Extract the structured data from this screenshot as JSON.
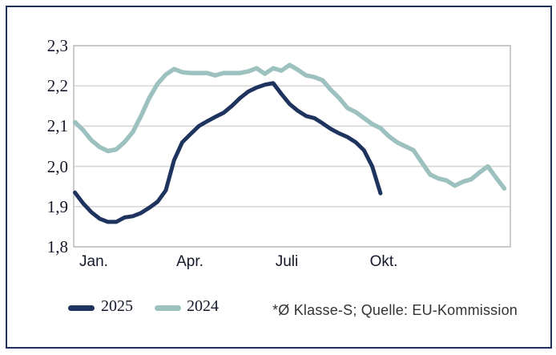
{
  "chart_data": {
    "type": "line",
    "title": "",
    "ylabel": "",
    "xlabel": "",
    "ylim": [
      1.8,
      2.3
    ],
    "grid": "horizontal",
    "legend_position": "bottom-left",
    "y_ticks": [
      "2,3",
      "2,2",
      "2,1",
      "2,0",
      "1,9",
      "1,8"
    ],
    "y_tick_values": [
      2.3,
      2.2,
      2.1,
      2.0,
      1.9,
      1.8
    ],
    "x_tick_labels": [
      "Jan.",
      "Apr.",
      "Juli",
      "Okt."
    ],
    "x_point_count": 53,
    "x_resolution": "weekly",
    "series": [
      {
        "name": "2025",
        "color": "#1e335d",
        "width": 5.0,
        "values": [
          1.935,
          1.908,
          1.886,
          1.87,
          1.862,
          1.862,
          1.873,
          1.876,
          1.884,
          1.897,
          1.912,
          1.94,
          2.015,
          2.06,
          2.08,
          2.1,
          2.112,
          2.123,
          2.133,
          2.15,
          2.17,
          2.186,
          2.196,
          2.203,
          2.207,
          2.18,
          2.155,
          2.138,
          2.125,
          2.12,
          2.107,
          2.093,
          2.082,
          2.073,
          2.06,
          2.04,
          2.0,
          1.933
        ]
      },
      {
        "name": "2024",
        "color": "#9dc1bf",
        "width": 5.5,
        "values": [
          2.11,
          2.09,
          2.065,
          2.048,
          2.038,
          2.042,
          2.06,
          2.085,
          2.125,
          2.17,
          2.205,
          2.228,
          2.242,
          2.234,
          2.232,
          2.232,
          2.232,
          2.226,
          2.232,
          2.232,
          2.232,
          2.236,
          2.244,
          2.23,
          2.244,
          2.238,
          2.252,
          2.24,
          2.226,
          2.222,
          2.214,
          2.19,
          2.17,
          2.145,
          2.135,
          2.12,
          2.105,
          2.095,
          2.075,
          2.06,
          2.05,
          2.04,
          2.01,
          1.98,
          1.97,
          1.965,
          1.952,
          1.962,
          1.968,
          1.985,
          2.0,
          1.972,
          1.945
        ]
      }
    ]
  },
  "legend": {
    "items": [
      {
        "label": "2025",
        "color": "#1e335d"
      },
      {
        "label": "2024",
        "color": "#9dc1bf"
      }
    ]
  },
  "footnote": "*Ø Klasse-S; Quelle: EU-Kommission",
  "colors": {
    "frame_border": "#20325c",
    "gridline": "#d9d9d9",
    "plot_border": "#c3c3c3",
    "axis_text": "#14182a",
    "footnote_text": "#333333",
    "background": "#ffffff"
  }
}
